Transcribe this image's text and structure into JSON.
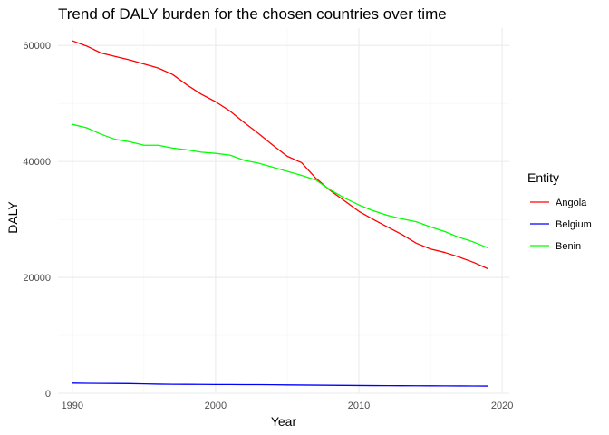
{
  "chart_data": {
    "type": "line",
    "title": "Trend of DALY burden for the chosen countries over time",
    "xlabel": "Year",
    "ylabel": "DALY",
    "xlim": [
      1989,
      2020.5
    ],
    "ylim": [
      0,
      63000
    ],
    "x_ticks": [
      1990,
      2000,
      2010,
      2020
    ],
    "y_ticks": [
      0,
      20000,
      40000,
      60000
    ],
    "grid": true,
    "legend": {
      "title": "Entity",
      "position": "right"
    },
    "x": [
      1990,
      1991,
      1992,
      1993,
      1994,
      1995,
      1996,
      1997,
      1998,
      1999,
      2000,
      2001,
      2002,
      2003,
      2004,
      2005,
      2006,
      2007,
      2008,
      2009,
      2010,
      2011,
      2012,
      2013,
      2014,
      2015,
      2016,
      2017,
      2018,
      2019
    ],
    "series": [
      {
        "name": "Angola",
        "color": "#ff0000",
        "values": [
          60800,
          59900,
          58700,
          58100,
          57500,
          56800,
          56100,
          55000,
          53200,
          51600,
          50300,
          48700,
          46700,
          44800,
          42800,
          40900,
          39800,
          37100,
          35000,
          33200,
          31400,
          30000,
          28700,
          27400,
          25900,
          24900,
          24300,
          23500,
          22600,
          21500
        ]
      },
      {
        "name": "Belgium",
        "color": "#0000ff",
        "values": [
          1750,
          1720,
          1700,
          1690,
          1670,
          1620,
          1570,
          1540,
          1530,
          1520,
          1510,
          1500,
          1490,
          1480,
          1460,
          1440,
          1420,
          1400,
          1380,
          1360,
          1340,
          1320,
          1310,
          1300,
          1290,
          1280,
          1270,
          1260,
          1250,
          1240
        ]
      },
      {
        "name": "Benin",
        "color": "#00ff00",
        "values": [
          46400,
          45800,
          44700,
          43800,
          43400,
          42800,
          42800,
          42300,
          42000,
          41600,
          41400,
          41100,
          40200,
          39700,
          39000,
          38300,
          37600,
          36800,
          35100,
          33700,
          32500,
          31500,
          30700,
          30100,
          29600,
          28700,
          27900,
          26900,
          26100,
          25100
        ]
      }
    ]
  }
}
